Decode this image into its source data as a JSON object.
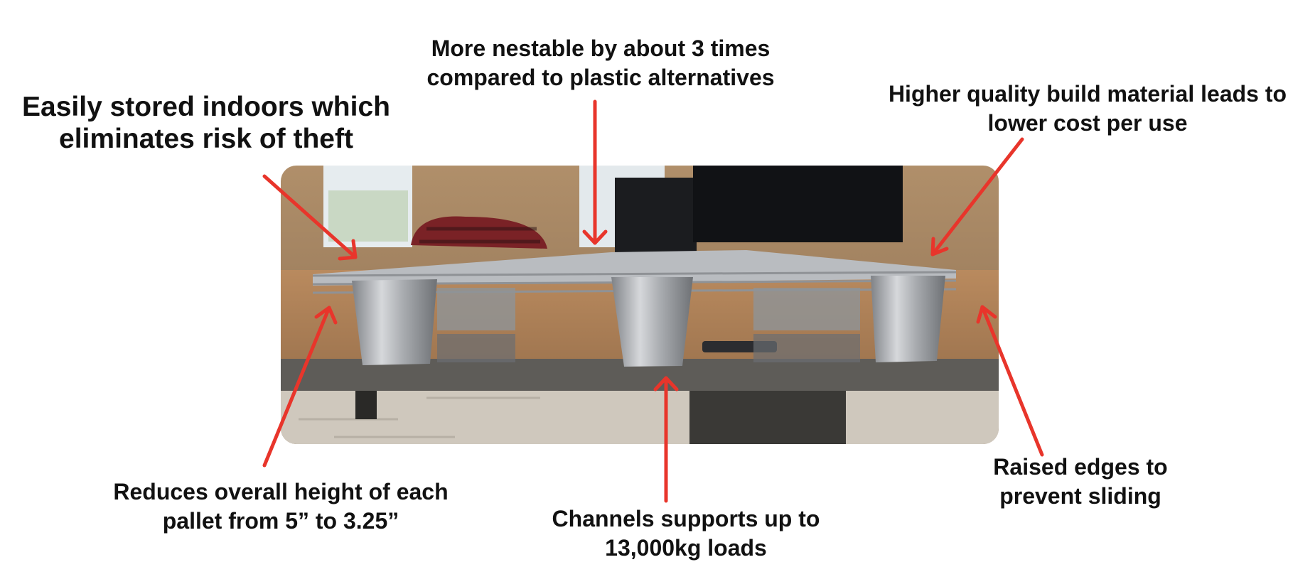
{
  "callouts": {
    "indoors": [
      "Easily stored indoors which",
      "eliminates risk of theft"
    ],
    "nestable": [
      "More nestable by about 3 times",
      "compared to plastic alternatives"
    ],
    "quality": [
      "Higher quality build material leads to",
      "lower cost per use"
    ],
    "height": [
      "Reduces overall height of each",
      "pallet from 5” to 3.25”"
    ],
    "channels": [
      "Channels supports up to",
      "13,000kg loads"
    ],
    "edges": [
      "Raised edges to",
      "prevent sliding"
    ]
  },
  "colors": {
    "arrow": "#e8352b",
    "text": "#111111",
    "background": "#ffffff"
  },
  "photo": {
    "subject": "stack of nested aluminum pallets on an office desk"
  }
}
